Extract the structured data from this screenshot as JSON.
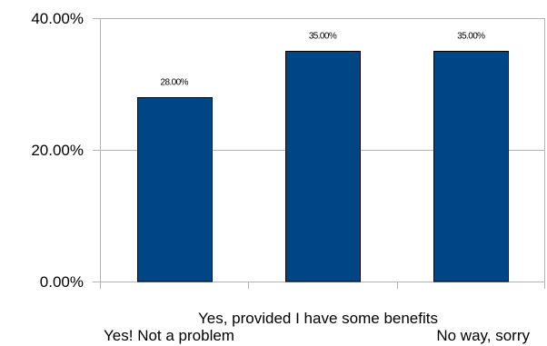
{
  "chart_data": {
    "type": "bar",
    "categories": [
      "Yes! Not a problem",
      "Yes, provided I have some benefits",
      "No way, sorry"
    ],
    "values": [
      0.28,
      0.35,
      0.35
    ],
    "data_labels": [
      "28.00%",
      "35.00%",
      "35.00%"
    ],
    "title": "",
    "xlabel": "",
    "ylabel": "",
    "ylim": [
      0,
      0.4
    ],
    "yticks": [
      0,
      0.2,
      0.4
    ],
    "ytick_labels": [
      "0.00%",
      "20.00%",
      "40.00%"
    ],
    "grid": true,
    "legend": "none",
    "colors": {
      "bar_fill": "#004586",
      "bar_stroke": "#000000",
      "grid": "#b3b3b3",
      "axis": "#b3b3b3",
      "text": "#000000"
    }
  }
}
